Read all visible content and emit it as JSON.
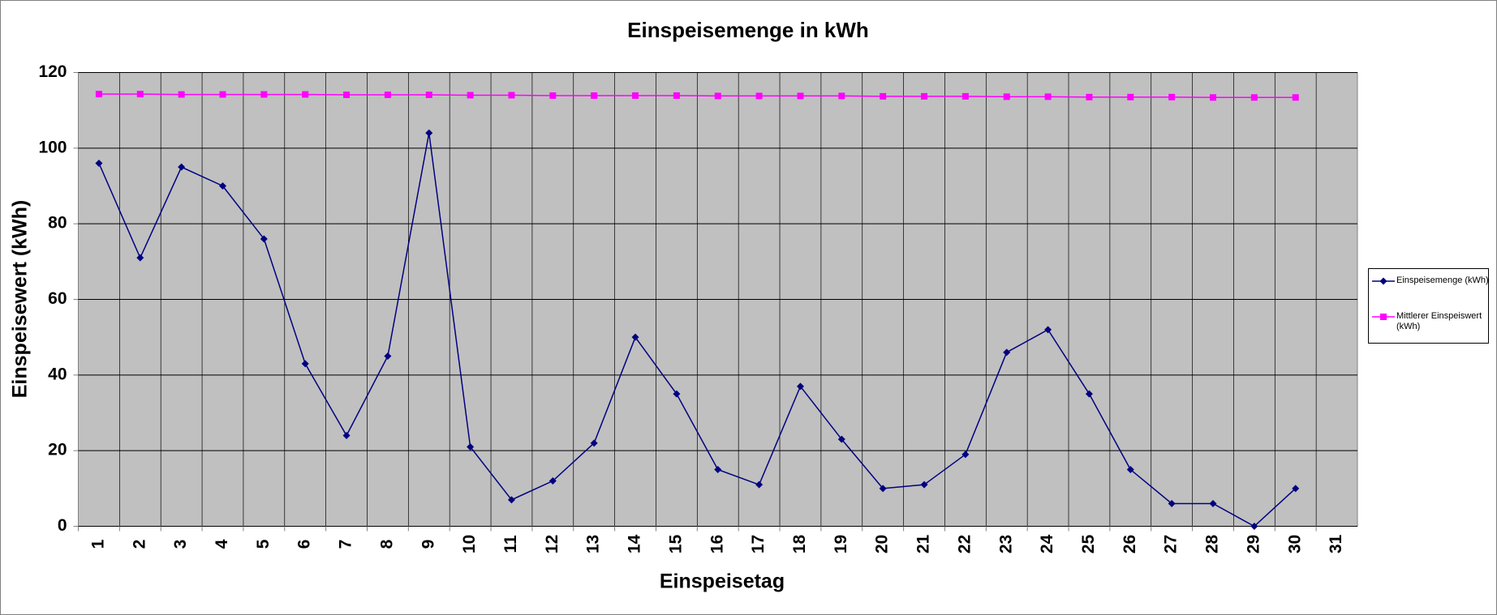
{
  "chart_data": {
    "type": "line",
    "title": "Einspeisemenge in kWh",
    "x_label": "Einspeisetag",
    "y_label": "Einspeisewert  (kWh)",
    "categories": [
      "1",
      "2",
      "3",
      "4",
      "5",
      "6",
      "7",
      "8",
      "9",
      "10",
      "11",
      "12",
      "13",
      "14",
      "15",
      "16",
      "17",
      "18",
      "19",
      "20",
      "21",
      "22",
      "23",
      "24",
      "25",
      "26",
      "27",
      "28",
      "29",
      "30",
      "31"
    ],
    "series": [
      {
        "name": "Einspeisemenge (kWh)",
        "color": "#000080",
        "marker": "diamond",
        "values": [
          96,
          71,
          95,
          90,
          76,
          43,
          24,
          45,
          104,
          21,
          7,
          12,
          22,
          50,
          35,
          15,
          11,
          37,
          23,
          10,
          11,
          19,
          46,
          52,
          35,
          15,
          6,
          6,
          0,
          10,
          null
        ]
      },
      {
        "name": "Mittlerer Einspeiswert (kWh)",
        "color": "#ff00ff",
        "marker": "square",
        "values": [
          114.3,
          114.3,
          114.2,
          114.2,
          114.2,
          114.2,
          114.1,
          114.1,
          114.1,
          114.0,
          114.0,
          113.9,
          113.9,
          113.9,
          113.9,
          113.8,
          113.8,
          113.8,
          113.8,
          113.7,
          113.7,
          113.7,
          113.6,
          113.6,
          113.5,
          113.5,
          113.5,
          113.4,
          113.4,
          113.4,
          null
        ]
      }
    ],
    "ylim": [
      0,
      120
    ],
    "yticks": [
      0,
      20,
      40,
      60,
      80,
      100,
      120
    ],
    "grid": true,
    "legend": "right"
  }
}
